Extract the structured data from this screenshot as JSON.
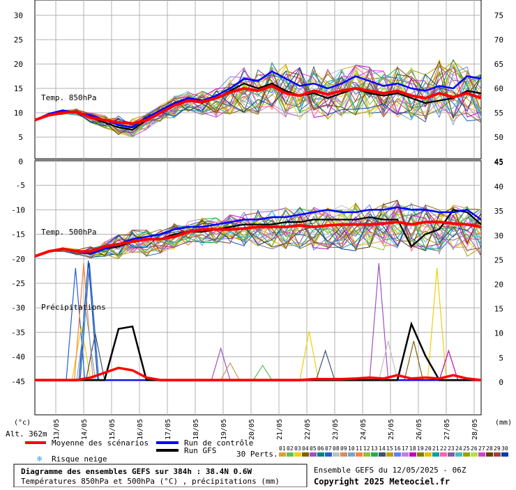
{
  "labels": {
    "t850": "Temp. 850hPa",
    "t500": "Temp. 500hPa",
    "precip": "Précipitations",
    "unit_c": "(°c)",
    "unit_mm": "(mm)",
    "alt": "Alt. 362m"
  },
  "legend": {
    "mean": "Moyenne des scénarios",
    "control": "Run de contrôle",
    "gfs": "Run GFS",
    "snow": "Risque neige",
    "perts_label": "30 Perts.",
    "perts": [
      "01",
      "02",
      "03",
      "04",
      "05",
      "06",
      "07",
      "08",
      "09",
      "10",
      "11",
      "12",
      "13",
      "14",
      "15",
      "16",
      "17",
      "18",
      "19",
      "20",
      "21",
      "22",
      "23",
      "24",
      "25",
      "26",
      "27",
      "28",
      "29",
      "30"
    ]
  },
  "footer": {
    "title": "Diagramme des ensembles GEFS sur 384h : 38.4N 0.6W",
    "subtitle": "Températures 850hPa et 500hPa (°C) , précipitations (mm)",
    "run": "Ensemble GEFS du 12/05/2025 - 06Z",
    "copyright": "Copyright 2025 Meteociel.fr"
  },
  "colors": {
    "mean": "#ff0000",
    "control": "#0000ff",
    "gfs": "#000000",
    "grid": "#b0b0b0",
    "perts": [
      "#e0a030",
      "#60c060",
      "#f0d000",
      "#806000",
      "#a050c0",
      "#008080",
      "#2060d0",
      "#c0c0c0",
      "#d09060",
      "#70a8d0",
      "#ff8040",
      "#90c040",
      "#20b050",
      "#405070",
      "#c0a000",
      "#6080ff",
      "#c080e0",
      "#c000c0",
      "#808000",
      "#e0c000",
      "#00a0a0",
      "#ff60b0",
      "#8060a0",
      "#40c0c0",
      "#a0a000",
      "#b0e040",
      "#d040d0",
      "#604000",
      "#a04040",
      "#0040a0"
    ]
  },
  "chart_data": [
    {
      "type": "line",
      "title": "Temp. 850hPa",
      "ylabel": "(°c)",
      "ylim": [
        0,
        30
      ],
      "y_ticks_left": [
        "30",
        "25",
        "20",
        "15",
        "10",
        "5",
        "0"
      ],
      "y_ticks_right": [
        "75",
        "70",
        "65",
        "60",
        "55",
        "50",
        "45"
      ],
      "x_dates": [
        "13/05",
        "14/05",
        "15/05",
        "16/05",
        "17/05",
        "18/05",
        "19/05",
        "20/05",
        "21/05",
        "22/05",
        "23/05",
        "24/05",
        "25/05",
        "26/05",
        "27/05",
        "28/05"
      ],
      "x": [
        0,
        12,
        24,
        36,
        48,
        60,
        72,
        84,
        96,
        108,
        120,
        132,
        144,
        156,
        168,
        180,
        192,
        204,
        216,
        228,
        240,
        252,
        264,
        276,
        288,
        300,
        312,
        324,
        336,
        348,
        360,
        372,
        384
      ],
      "series": [
        {
          "name": "Moyenne des scénarios",
          "values": [
            8.5,
            9.5,
            10.0,
            10.2,
            9.0,
            8.5,
            8.0,
            7.8,
            8.5,
            10.0,
            11.5,
            12.5,
            12.2,
            13.0,
            14.2,
            15.0,
            14.5,
            15.5,
            14.0,
            13.5,
            14.5,
            13.8,
            14.5,
            15.0,
            14.5,
            14.0,
            14.5,
            13.5,
            13.0,
            14.0,
            13.2,
            14.0,
            13.0
          ]
        },
        {
          "name": "Run de contrôle",
          "values": [
            8.5,
            9.8,
            10.5,
            10.0,
            9.5,
            8.5,
            7.5,
            7.0,
            9.0,
            10.5,
            12.0,
            13.0,
            12.5,
            13.5,
            15.0,
            17.0,
            16.5,
            18.5,
            17.0,
            15.5,
            16.0,
            15.0,
            16.0,
            17.5,
            16.5,
            15.5,
            16.0,
            15.0,
            14.5,
            15.5,
            15.0,
            17.5,
            17.0
          ]
        },
        {
          "name": "Run GFS",
          "values": [
            8.5,
            9.6,
            10.2,
            10.0,
            9.0,
            8.0,
            7.0,
            6.5,
            8.5,
            10.0,
            12.0,
            12.5,
            12.0,
            13.0,
            14.5,
            16.0,
            15.0,
            16.0,
            14.5,
            13.5,
            14.0,
            13.0,
            14.0,
            15.0,
            14.0,
            13.5,
            14.0,
            13.0,
            12.0,
            12.5,
            13.0,
            14.5,
            14.0
          ]
        }
      ],
      "spread": [
        {
          "hi": [
            9.5,
            10.5,
            11.5,
            11.5,
            10.5,
            10.0,
            9.5,
            9.0,
            10.0,
            11.5,
            13.5,
            14.5,
            14.5,
            15.5,
            17.5,
            19.5,
            19.0,
            20.5,
            20.5,
            19.5,
            20.0,
            19.0,
            19.5,
            20.0,
            19.5,
            19.0,
            20.0,
            19.5,
            19.5,
            21.0,
            21.0,
            19.5,
            18.5
          ],
          "lo": [
            7.5,
            8.5,
            9.0,
            8.5,
            7.5,
            6.5,
            5.5,
            5.0,
            6.5,
            8.0,
            9.0,
            10.0,
            9.5,
            9.0,
            9.5,
            10.0,
            9.5,
            10.0,
            9.0,
            8.5,
            9.0,
            8.5,
            9.0,
            9.5,
            9.0,
            8.5,
            9.0,
            8.5,
            8.0,
            8.5,
            7.5,
            8.0,
            8.0
          ]
        }
      ]
    },
    {
      "type": "line",
      "title": "Temp. 500hPa",
      "ylabel": "(°c)",
      "ylim": [
        -45,
        0
      ],
      "y_ticks_left": [
        "-5",
        "-10",
        "-15",
        "-20",
        "-25",
        "-30",
        "-35",
        "-40",
        "-45"
      ],
      "x": [
        0,
        12,
        24,
        36,
        48,
        60,
        72,
        84,
        96,
        108,
        120,
        132,
        144,
        156,
        168,
        180,
        192,
        204,
        216,
        228,
        240,
        252,
        264,
        276,
        288,
        300,
        312,
        324,
        336,
        348,
        360,
        372,
        384
      ],
      "series": [
        {
          "name": "Moyenne des scénarios",
          "values": [
            -19.5,
            -18.5,
            -18.0,
            -18.5,
            -18.5,
            -17.5,
            -17.0,
            -16.5,
            -16.0,
            -16.0,
            -15.5,
            -14.5,
            -14.0,
            -14.0,
            -14.0,
            -13.8,
            -13.5,
            -13.5,
            -13.5,
            -13.2,
            -13.5,
            -13.2,
            -13.0,
            -13.0,
            -13.0,
            -12.8,
            -12.5,
            -13.0,
            -12.5,
            -12.5,
            -12.8,
            -13.0,
            -13.5
          ]
        },
        {
          "name": "Run de contrôle",
          "values": [
            -19.5,
            -18.5,
            -18.0,
            -18.5,
            -19.0,
            -18.0,
            -17.0,
            -16.0,
            -15.5,
            -15.0,
            -14.0,
            -13.5,
            -13.5,
            -13.0,
            -12.5,
            -12.0,
            -12.0,
            -11.5,
            -11.5,
            -11.0,
            -10.5,
            -10.0,
            -10.5,
            -10.5,
            -10.0,
            -10.0,
            -9.5,
            -10.0,
            -10.0,
            -10.5,
            -10.5,
            -10.0,
            -12.0
          ]
        },
        {
          "name": "Run GFS",
          "values": [
            -19.5,
            -18.5,
            -18.0,
            -18.5,
            -19.0,
            -18.0,
            -17.5,
            -16.5,
            -16.0,
            -16.0,
            -15.0,
            -14.5,
            -14.5,
            -14.0,
            -13.5,
            -13.0,
            -13.0,
            -13.0,
            -12.5,
            -12.5,
            -12.0,
            -12.0,
            -12.0,
            -12.0,
            -11.5,
            -12.0,
            -12.0,
            -17.5,
            -15.0,
            -14.0,
            -10.0,
            -10.5,
            -13.0
          ]
        }
      ],
      "spread": [
        {
          "hi": [
            -19.0,
            -17.5,
            -17.0,
            -17.5,
            -17.0,
            -16.0,
            -15.0,
            -14.0,
            -14.0,
            -13.5,
            -12.5,
            -12.0,
            -11.5,
            -11.5,
            -11.0,
            -10.5,
            -10.0,
            -10.0,
            -9.5,
            -9.5,
            -9.0,
            -9.0,
            -9.0,
            -8.5,
            -8.5,
            -8.0,
            -8.0,
            -8.5,
            -8.5,
            -9.0,
            -9.0,
            -9.0,
            -9.5
          ],
          "lo": [
            -20.0,
            -19.5,
            -19.5,
            -20.0,
            -20.5,
            -20.0,
            -20.0,
            -19.5,
            -19.5,
            -19.0,
            -18.0,
            -17.5,
            -17.5,
            -17.0,
            -17.0,
            -17.5,
            -17.5,
            -18.0,
            -18.0,
            -18.0,
            -18.5,
            -18.0,
            -18.0,
            -18.5,
            -18.0,
            -18.5,
            -18.5,
            -19.0,
            -18.5,
            -19.0,
            -19.0,
            -19.5,
            -19.5
          ]
        }
      ]
    },
    {
      "type": "line",
      "title": "Précipitations",
      "ylabel": "(mm)",
      "ylim": [
        0,
        45
      ],
      "y_ticks_right": [
        "45",
        "40",
        "35",
        "30",
        "25",
        "20",
        "15",
        "10",
        "5",
        "0"
      ],
      "x": [
        0,
        12,
        24,
        36,
        48,
        60,
        72,
        84,
        96,
        108,
        120,
        132,
        144,
        156,
        168,
        180,
        192,
        204,
        216,
        228,
        240,
        252,
        264,
        276,
        288,
        300,
        312,
        324,
        336,
        348,
        360,
        372,
        384
      ],
      "series": [
        {
          "name": "Moyenne des scénarios",
          "values": [
            0,
            0,
            0,
            0,
            0.5,
            1.5,
            2.5,
            2.0,
            0.5,
            0,
            0,
            0,
            0,
            0,
            0,
            0,
            0,
            0,
            0,
            0,
            0.2,
            0.2,
            0.2,
            0.3,
            0.5,
            0.3,
            1.0,
            0.3,
            0.5,
            0.3,
            1.0,
            0.3,
            0
          ]
        },
        {
          "name": "Run de contrôle",
          "values": [
            0,
            0,
            0,
            0,
            0,
            0,
            0,
            0,
            0,
            0,
            0,
            0,
            0,
            0,
            0,
            0,
            0,
            0,
            0,
            0,
            0,
            0,
            0,
            0,
            0,
            0,
            0,
            0,
            0,
            0,
            0,
            0,
            0
          ]
        },
        {
          "name": "Run GFS",
          "values": [
            0,
            0,
            0,
            0,
            0,
            0,
            10.5,
            11.0,
            0,
            0,
            0,
            0,
            0,
            0,
            0,
            0,
            0,
            0,
            0,
            0,
            0,
            0,
            0,
            0,
            0,
            0,
            0,
            11.5,
            5.0,
            0,
            0,
            0,
            0
          ]
        }
      ],
      "peaks": [
        {
          "x": 35,
          "v": 23.0,
          "c": "#2060d0"
        },
        {
          "x": 40,
          "v": 11.0,
          "c": "#f0d000"
        },
        {
          "x": 42,
          "v": 24.0,
          "c": "#ff8040"
        },
        {
          "x": 46,
          "v": 24.5,
          "c": "#0040a0"
        },
        {
          "x": 47,
          "v": 24.0,
          "c": "#2060d0"
        },
        {
          "x": 52,
          "v": 9.5,
          "c": "#405070"
        },
        {
          "x": 44,
          "v": 14.0,
          "c": "#70a8d0"
        },
        {
          "x": 160,
          "v": 6.5,
          "c": "#a050c0"
        },
        {
          "x": 168,
          "v": 3.5,
          "c": "#d09060"
        },
        {
          "x": 236,
          "v": 10.0,
          "c": "#f0d000"
        },
        {
          "x": 250,
          "v": 6.0,
          "c": "#405070"
        },
        {
          "x": 296,
          "v": 24.0,
          "c": "#a050c0"
        },
        {
          "x": 304,
          "v": 8.0,
          "c": "#c0c0c0"
        },
        {
          "x": 326,
          "v": 8.0,
          "c": "#806000"
        },
        {
          "x": 346,
          "v": 23.0,
          "c": "#f0d000"
        },
        {
          "x": 356,
          "v": 6.0,
          "c": "#c000c0"
        },
        {
          "x": 196,
          "v": 3.0,
          "c": "#60c060"
        }
      ]
    }
  ]
}
